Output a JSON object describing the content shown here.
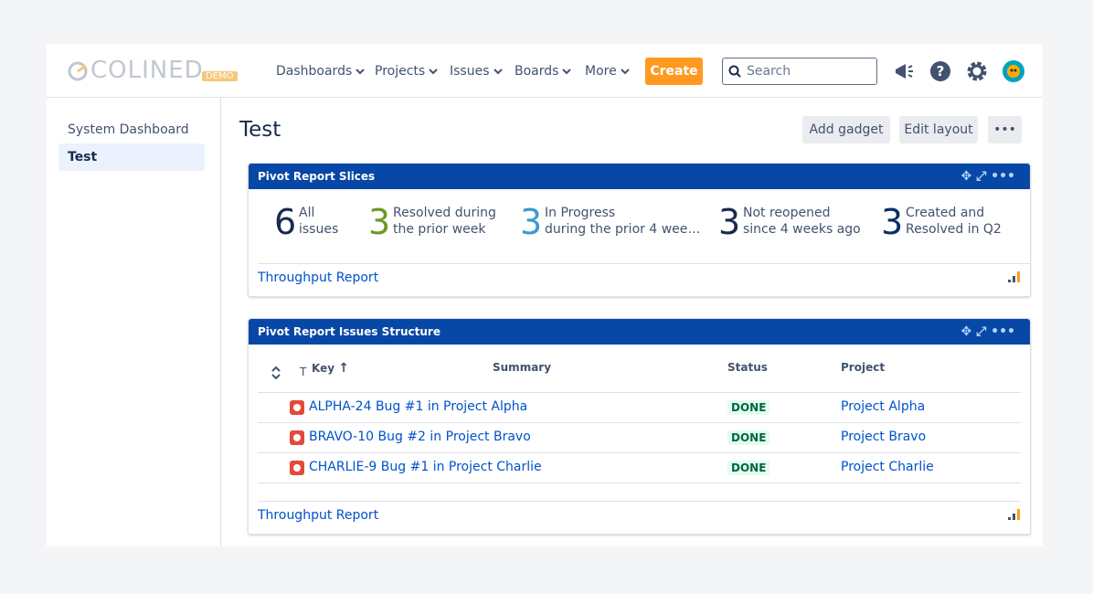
{
  "header": {
    "logo": "COLINED",
    "logo_badge": "DEMO",
    "nav": [
      "Dashboards",
      "Projects",
      "Issues",
      "Boards",
      "More"
    ],
    "create": "Create",
    "search_placeholder": "Search"
  },
  "sidebar": {
    "items": [
      "System Dashboard",
      "Test"
    ],
    "selected": 1
  },
  "page": {
    "title": "Test",
    "buttons": [
      "Add gadget",
      "Edit layout"
    ]
  },
  "gadgets": [
    {
      "title": "Pivot Report Slices",
      "slices": [
        {
          "count": "6",
          "color": "#172b4d",
          "label": [
            "All",
            "issues"
          ]
        },
        {
          "count": "3",
          "color": "#6a9a23",
          "label": [
            "Resolved during",
            "the prior week"
          ]
        },
        {
          "count": "3",
          "color": "#3b9ad1",
          "label": [
            "In Progress",
            "during the prior 4 wee…"
          ]
        },
        {
          "count": "3",
          "color": "#172b4d",
          "label": [
            "Not reopened",
            "since 4 weeks ago"
          ]
        },
        {
          "count": "3",
          "color": "#0c2d66",
          "label": [
            "Created and",
            "Resolved in Q2"
          ]
        }
      ],
      "footer_link": "Throughput Report"
    },
    {
      "title": "Pivot Report Issues Structure",
      "columns": {
        "type": "T",
        "key": "Key",
        "summary": "Summary",
        "status": "Status",
        "project": "Project"
      },
      "rows": [
        {
          "key": "ALPHA-24",
          "summary": "Bug #1 in Project Alpha",
          "status": "DONE",
          "project": "Project Alpha"
        },
        {
          "key": "BRAVO-10",
          "summary": "Bug #2 in Project Bravo",
          "status": "DONE",
          "project": "Project Bravo"
        },
        {
          "key": "CHARLIE-9",
          "summary": "Bug #1 in Project Charlie",
          "status": "DONE",
          "project": "Project Charlie"
        }
      ],
      "footer_link": "Throughput Report"
    }
  ]
}
